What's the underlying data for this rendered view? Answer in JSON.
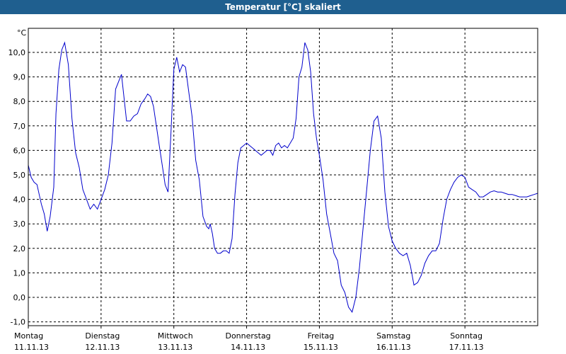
{
  "window": {
    "title": "Temperatur [°C] skaliert"
  },
  "chart_data": {
    "type": "line",
    "title": "Temperatur [°C] skaliert",
    "unit_label": "°C",
    "ylim": [
      -1.2,
      11.0
    ],
    "y_ticks": [
      "10,0",
      "9,0",
      "8,0",
      "7,0",
      "6,0",
      "5,0",
      "4,0",
      "3,0",
      "2,0",
      "1,0",
      "0,0",
      "-1,0"
    ],
    "y_tick_values": [
      10,
      9,
      8,
      7,
      6,
      5,
      4,
      3,
      2,
      1,
      0,
      -1
    ],
    "xlim": [
      0,
      7
    ],
    "x_ticks": [
      {
        "day": "Montag",
        "date": "11.11.13",
        "x": 0
      },
      {
        "day": "Dienstag",
        "date": "12.11.13",
        "x": 1
      },
      {
        "day": "Mittwoch",
        "date": "13.11.13",
        "x": 2
      },
      {
        "day": "Donnerstag",
        "date": "14.11.13",
        "x": 3
      },
      {
        "day": "Freitag",
        "date": "15.11.13",
        "x": 4
      },
      {
        "day": "Samstag",
        "date": "16.11.13",
        "x": 5
      },
      {
        "day": "Sonntag",
        "date": "17.11.13",
        "x": 6
      }
    ],
    "grid": true,
    "line_color": "#0000cc",
    "series": [
      {
        "x": [
          0.0,
          0.04,
          0.08,
          0.12,
          0.15,
          0.18,
          0.22,
          0.26,
          0.3,
          0.35,
          0.38,
          0.42,
          0.46,
          0.5,
          0.55,
          0.6,
          0.65,
          0.7,
          0.75,
          0.8,
          0.85,
          0.9,
          0.95,
          1.0,
          1.05,
          1.1,
          1.15,
          1.2,
          1.28,
          1.35,
          1.4,
          1.45,
          1.5,
          1.55,
          1.6,
          1.64,
          1.68,
          1.72,
          1.76,
          1.8,
          1.84,
          1.88,
          1.92,
          1.96,
          2.0,
          2.04,
          2.08,
          2.12,
          2.16,
          2.2,
          2.25,
          2.3,
          2.35,
          2.4,
          2.45,
          2.48,
          2.5,
          2.53,
          2.56,
          2.6,
          2.64,
          2.68,
          2.72,
          2.76,
          2.8,
          2.84,
          2.88,
          2.92,
          2.96,
          3.0,
          3.04,
          3.08,
          3.12,
          3.16,
          3.2,
          3.24,
          3.28,
          3.32,
          3.36,
          3.4,
          3.44,
          3.48,
          3.52,
          3.56,
          3.6,
          3.64,
          3.68,
          3.72,
          3.76,
          3.8,
          3.84,
          3.88,
          3.92,
          3.96,
          4.0,
          4.05,
          4.1,
          4.15,
          4.2,
          4.25,
          4.3,
          4.35,
          4.4,
          4.45,
          4.5,
          4.55,
          4.6,
          4.65,
          4.7,
          4.75,
          4.8,
          4.85,
          4.9,
          4.95,
          5.0,
          5.05,
          5.1,
          5.15,
          5.2,
          5.25,
          5.3,
          5.35,
          5.4,
          5.45,
          5.5,
          5.55,
          5.6,
          5.65,
          5.7,
          5.75,
          5.8,
          5.85,
          5.9,
          5.95,
          6.0,
          6.05,
          6.1,
          6.15,
          6.2,
          6.25,
          6.3,
          6.35,
          6.4,
          6.45,
          6.5,
          6.55,
          6.6,
          6.65,
          6.7,
          6.75,
          6.8,
          6.85,
          6.9,
          6.95,
          7.0
        ],
        "y": [
          5.4,
          4.9,
          4.7,
          4.6,
          4.2,
          3.8,
          3.4,
          2.7,
          3.3,
          4.5,
          7.5,
          9.3,
          10.1,
          10.4,
          9.5,
          7.3,
          5.9,
          5.3,
          4.4,
          4.0,
          3.6,
          3.8,
          3.6,
          4.0,
          4.4,
          5.0,
          6.3,
          8.5,
          9.1,
          7.2,
          7.2,
          7.4,
          7.5,
          7.9,
          8.1,
          8.3,
          8.2,
          7.8,
          7.0,
          6.2,
          5.4,
          4.6,
          4.3,
          6.7,
          9.3,
          9.8,
          9.2,
          9.5,
          9.4,
          8.5,
          7.4,
          5.6,
          4.8,
          3.3,
          2.9,
          2.8,
          3.0,
          2.6,
          2.0,
          1.8,
          1.8,
          1.9,
          1.9,
          1.8,
          2.4,
          4.2,
          5.5,
          6.1,
          6.2,
          6.3,
          6.2,
          6.1,
          6.0,
          5.9,
          5.8,
          5.9,
          6.0,
          6.0,
          5.8,
          6.2,
          6.3,
          6.1,
          6.2,
          6.1,
          6.3,
          6.5,
          7.3,
          9.0,
          9.4,
          10.4,
          10.1,
          9.2,
          7.5,
          6.5,
          5.8,
          4.8,
          3.4,
          2.6,
          1.8,
          1.5,
          0.5,
          0.2,
          -0.4,
          -0.6,
          0.0,
          1.2,
          2.8,
          4.4,
          6.0,
          7.2,
          7.4,
          6.5,
          4.3,
          2.9,
          2.3,
          2.0,
          1.8,
          1.7,
          1.8,
          1.3,
          0.5,
          0.6,
          0.9,
          1.4,
          1.7,
          1.9,
          1.9,
          2.2,
          3.2,
          4.0,
          4.4,
          4.7,
          4.9,
          5.0,
          4.9,
          4.5,
          4.4,
          4.3,
          4.1,
          4.1,
          4.2,
          4.3,
          4.35,
          4.3,
          4.3,
          4.25,
          4.2,
          4.2,
          4.15,
          4.1,
          4.1,
          4.1,
          4.15,
          4.2,
          4.25
        ]
      }
    ]
  }
}
